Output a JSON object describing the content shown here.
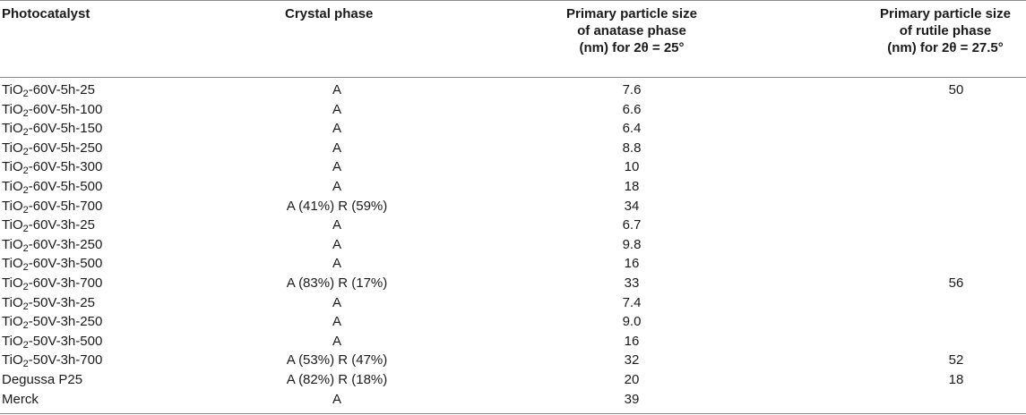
{
  "table": {
    "headers": {
      "photocatalyst": "Photocatalyst",
      "crystal_phase": "Crystal phase",
      "anatase_lines": [
        "Primary particle size",
        "of anatase phase",
        "(nm) for 2θ = 25°"
      ],
      "rutile_lines": [
        "Primary particle size",
        "of rutile phase",
        "(nm) for 2θ = 27.5°"
      ]
    },
    "rows": [
      {
        "pre": "TiO",
        "sub": "2",
        "post": "-60V-5h-25",
        "phase": "A",
        "anatase": "7.6",
        "rutile": "50"
      },
      {
        "pre": "TiO",
        "sub": "2",
        "post": "-60V-5h-100",
        "phase": "A",
        "anatase": "6.6",
        "rutile": ""
      },
      {
        "pre": "TiO",
        "sub": "2",
        "post": "-60V-5h-150",
        "phase": "A",
        "anatase": "6.4",
        "rutile": ""
      },
      {
        "pre": "TiO",
        "sub": "2",
        "post": "-60V-5h-250",
        "phase": "A",
        "anatase": "8.8",
        "rutile": ""
      },
      {
        "pre": "TiO",
        "sub": "2",
        "post": "-60V-5h-300",
        "phase": "A",
        "anatase": "10",
        "rutile": ""
      },
      {
        "pre": "TiO",
        "sub": "2",
        "post": "-60V-5h-500",
        "phase": "A",
        "anatase": "18",
        "rutile": ""
      },
      {
        "pre": "TiO",
        "sub": "2",
        "post": "-60V-5h-700",
        "phase": "A (41%) R (59%)",
        "anatase": "34",
        "rutile": ""
      },
      {
        "pre": "TiO",
        "sub": "2",
        "post": "-60V-3h-25",
        "phase": "A",
        "anatase": "6.7",
        "rutile": ""
      },
      {
        "pre": "TiO",
        "sub": "2",
        "post": "-60V-3h-250",
        "phase": "A",
        "anatase": "9.8",
        "rutile": ""
      },
      {
        "pre": "TiO",
        "sub": "2",
        "post": "-60V-3h-500",
        "phase": "A",
        "anatase": "16",
        "rutile": ""
      },
      {
        "pre": "TiO",
        "sub": "2",
        "post": "-60V-3h-700",
        "phase": "A (83%) R (17%)",
        "anatase": "33",
        "rutile": "56"
      },
      {
        "pre": "TiO",
        "sub": "2",
        "post": "-50V-3h-25",
        "phase": "A",
        "anatase": "7.4",
        "rutile": ""
      },
      {
        "pre": "TiO",
        "sub": "2",
        "post": "-50V-3h-250",
        "phase": "A",
        "anatase": "9.0",
        "rutile": ""
      },
      {
        "pre": "TiO",
        "sub": "2",
        "post": "-50V-3h-500",
        "phase": "A",
        "anatase": "16",
        "rutile": ""
      },
      {
        "pre": "TiO",
        "sub": "2",
        "post": "-50V-3h-700",
        "phase": "A (53%) R (47%)",
        "anatase": "32",
        "rutile": "52"
      },
      {
        "pre": "Degussa P25",
        "sub": "",
        "post": "",
        "phase": "A (82%) R (18%)",
        "anatase": "20",
        "rutile": "18"
      },
      {
        "pre": "Merck",
        "sub": "",
        "post": "",
        "phase": "A",
        "anatase": "39",
        "rutile": ""
      }
    ]
  }
}
